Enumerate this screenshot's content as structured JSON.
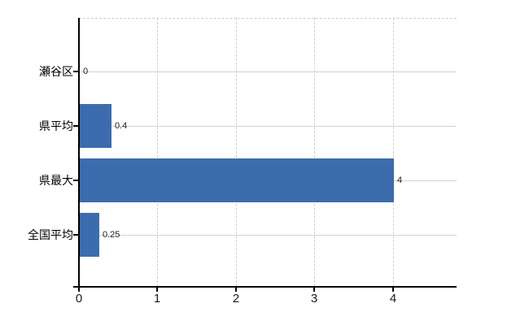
{
  "chart_data": {
    "type": "bar",
    "orientation": "horizontal",
    "title": "",
    "xlabel": "",
    "ylabel": "",
    "categories": [
      "瀬谷区",
      "県平均",
      "県最大",
      "全国平均"
    ],
    "values": [
      0,
      0.4,
      4,
      0.25
    ],
    "value_labels": [
      "0",
      "0.4",
      "4",
      "0.25"
    ],
    "x_tick_labels": [
      "0",
      "1",
      "2",
      "3",
      "4"
    ],
    "x_tick_values": [
      0,
      1,
      2,
      3,
      4
    ],
    "xlim": [
      0,
      4.81
    ],
    "grid": {
      "horizontal_lines": "solid, one per category",
      "vertical_lines": "dashed, at each x tick",
      "top_border": "dashed"
    },
    "legend_position": "none",
    "colors": {
      "bar": "#3d6cae",
      "grid_horizontal": "#ccd6cc",
      "grid_vertical": "#c6d2c6",
      "top_border": "#c9cfc9",
      "axis": "#000000",
      "category_text": "#000000",
      "tick_text": "#1a1a1a",
      "background": "#ffffff"
    }
  }
}
